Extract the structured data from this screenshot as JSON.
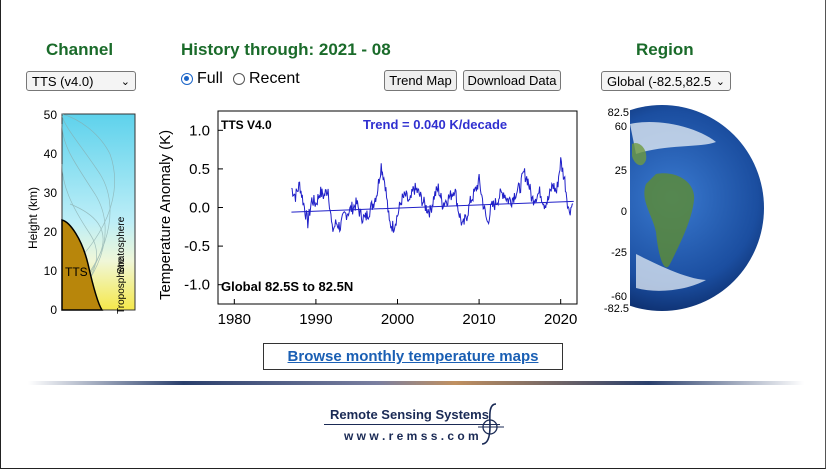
{
  "channel": {
    "heading": "Channel",
    "select_value": "TTS (v4.0)",
    "height_axis_label": "Height  (km)",
    "height_ticks": [
      "50",
      "40",
      "30",
      "20",
      "10",
      "0"
    ],
    "stratosphere_label": "Stratosphere",
    "troposphere_label": "Troposphere",
    "band_label": "TTS"
  },
  "history": {
    "heading": "History through: 2021 - 08",
    "radio_full": "Full",
    "radio_recent": "Recent",
    "selected": "Full"
  },
  "toolbar": {
    "trend_map_label": "Trend Map",
    "download_label": "Download Data"
  },
  "region": {
    "heading": "Region",
    "select_value": "Global (-82.5,82.5",
    "lat_labels": [
      "82.5",
      "60",
      "25",
      "0",
      "-25",
      "-60",
      "-82.5"
    ]
  },
  "links": {
    "browse_label": "Browse monthly temperature maps"
  },
  "footer": {
    "company": "Remote Sensing Systems",
    "url": "w w w . r e m s s . c o m"
  },
  "colors": {
    "heading_green": "#1a6b2a",
    "series_line": "#2020c8",
    "trend_text": "#3030d0",
    "link_blue": "#1a5fb4",
    "weighting_fill": "#b8860b"
  },
  "chart_data": {
    "type": "line",
    "ylabel": "Temperature Anomaly (K)",
    "xlim": [
      1978,
      2022
    ],
    "ylim": [
      -1.25,
      1.25
    ],
    "x_ticks": [
      "1980",
      "1990",
      "2000",
      "2010",
      "2020"
    ],
    "y_ticks": [
      "1.0",
      "0.5",
      "0.0",
      "-0.5",
      "-1.0"
    ],
    "annotations": {
      "top_left": "TTS V4.0",
      "trend": "Trend =  0.040 K/decade",
      "bottom_left": "Global  82.5S to  82.5N"
    },
    "series": [
      {
        "x": [
          1987.0,
          1987.5,
          1988.0,
          1988.5,
          1989.0,
          1989.5,
          1990.0,
          1990.5,
          1991.0,
          1991.5,
          1992.0,
          1992.5,
          1993.0,
          1993.5,
          1994.0,
          1994.5,
          1995.0,
          1995.5,
          1996.0,
          1996.5,
          1997.0,
          1997.5,
          1998.0,
          1998.5,
          1999.0,
          1999.5,
          2000.0,
          2000.5,
          2001.0,
          2001.5,
          2002.0,
          2002.5,
          2003.0,
          2003.5,
          2004.0,
          2004.5,
          2005.0,
          2005.5,
          2006.0,
          2006.5,
          2007.0,
          2007.5,
          2008.0,
          2008.5,
          2009.0,
          2009.5,
          2010.0,
          2010.5,
          2011.0,
          2011.5,
          2012.0,
          2012.5,
          2013.0,
          2013.5,
          2014.0,
          2014.5,
          2015.0,
          2015.5,
          2016.0,
          2016.5,
          2017.0,
          2017.5,
          2018.0,
          2018.5,
          2019.0,
          2019.5,
          2020.0,
          2020.5,
          2021.0,
          2021.5
        ],
        "values": [
          0.25,
          0.15,
          0.3,
          0.05,
          -0.2,
          0.1,
          0.05,
          0.2,
          0.15,
          0.25,
          -0.3,
          -0.2,
          -0.25,
          -0.1,
          -0.05,
          0.0,
          0.05,
          -0.1,
          -0.15,
          -0.05,
          0.05,
          0.2,
          0.55,
          0.3,
          -0.2,
          -0.25,
          -0.1,
          0.1,
          0.15,
          0.05,
          0.25,
          0.2,
          0.1,
          0.0,
          -0.05,
          0.15,
          0.25,
          0.05,
          0.1,
          0.15,
          0.25,
          -0.05,
          -0.25,
          -0.1,
          0.1,
          0.2,
          0.35,
          0.05,
          -0.2,
          0.0,
          0.05,
          0.15,
          0.2,
          0.1,
          0.1,
          0.2,
          0.25,
          0.45,
          0.35,
          0.1,
          0.15,
          0.2,
          0.05,
          0.1,
          0.3,
          0.2,
          0.6,
          0.35,
          -0.05,
          0.05
        ]
      }
    ],
    "trend_line": {
      "x": [
        1987.0,
        2021.6
      ],
      "values": [
        -0.06,
        0.08
      ]
    }
  }
}
